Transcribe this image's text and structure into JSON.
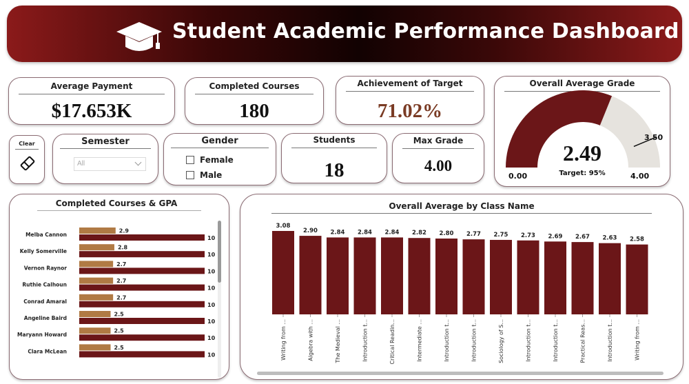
{
  "header": {
    "title": "Student Academic Performance Dashboard",
    "icon": "graduation-cap-icon"
  },
  "kpis": {
    "average_payment": {
      "label": "Average Payment",
      "value": "$17.653K"
    },
    "completed_courses": {
      "label": "Completed Courses",
      "value": "180"
    },
    "achievement": {
      "label": "Achievement of Target",
      "value": "71.02%"
    },
    "students": {
      "label": "Students",
      "value": "18"
    },
    "max_grade": {
      "label": "Max Grade",
      "value": "4.00"
    }
  },
  "filters": {
    "clear": {
      "label": "Clear",
      "icon": "eraser-icon"
    },
    "semester": {
      "label": "Semester",
      "selected": "All"
    },
    "gender": {
      "label": "Gender",
      "options": [
        "Female",
        "Male"
      ]
    }
  },
  "gauge": {
    "title": "Overall Average Grade",
    "value_text": "2.49",
    "value": 2.49,
    "min": 0,
    "max": 4,
    "target": 3.5,
    "target_text": "Target: 95%",
    "min_label": "0.00",
    "max_label": "4.00",
    "target_label": "3.50"
  },
  "colors": {
    "maroon": "#6b1618",
    "tan": "#b07a44",
    "gauge_track": "#e6e3de",
    "achievement": "#7a3b24"
  },
  "chart_data": [
    {
      "type": "bar",
      "orientation": "horizontal",
      "title": "Completed Courses & GPA",
      "categories": [
        "Melba Cannon",
        "Kelly Somerville",
        "Vernon Raynor",
        "Ruthie Calhoun",
        "Conrad Amaral",
        "Angeline Baird",
        "Maryann Howard",
        "Clara McLean"
      ],
      "series": [
        {
          "values": [
            2.9,
            2.8,
            2.7,
            2.7,
            2.7,
            2.5,
            2.5,
            2.5
          ],
          "color": "#b07a44"
        },
        {
          "values": [
            10,
            10,
            10,
            10,
            10,
            10,
            10,
            10
          ],
          "color": "#6b1618"
        }
      ],
      "xlim": [
        0,
        10
      ]
    },
    {
      "type": "bar",
      "title": "Overall Average by Class Name",
      "categories": [
        "Writing from ...",
        "Algebra with ...",
        "The Medieval ...",
        "Introduction t...",
        "Critical Readin...",
        "Intermediate ...",
        "Introduction t...",
        "Introduction t...",
        "Sociology of S...",
        "Introduction t...",
        "Introduction t...",
        "Practical Reas...",
        "Introduction t...",
        "Writing from ..."
      ],
      "values": [
        3.08,
        2.9,
        2.84,
        2.84,
        2.84,
        2.82,
        2.8,
        2.77,
        2.75,
        2.73,
        2.69,
        2.67,
        2.63,
        2.58
      ],
      "labels": [
        "3.08",
        "2.90",
        "2.84",
        "2.84",
        "2.84",
        "2.82",
        "2.80",
        "2.77",
        "2.75",
        "2.73",
        "2.69",
        "2.67",
        "2.63",
        "2.58"
      ],
      "ylim": [
        0,
        3.08
      ]
    }
  ]
}
